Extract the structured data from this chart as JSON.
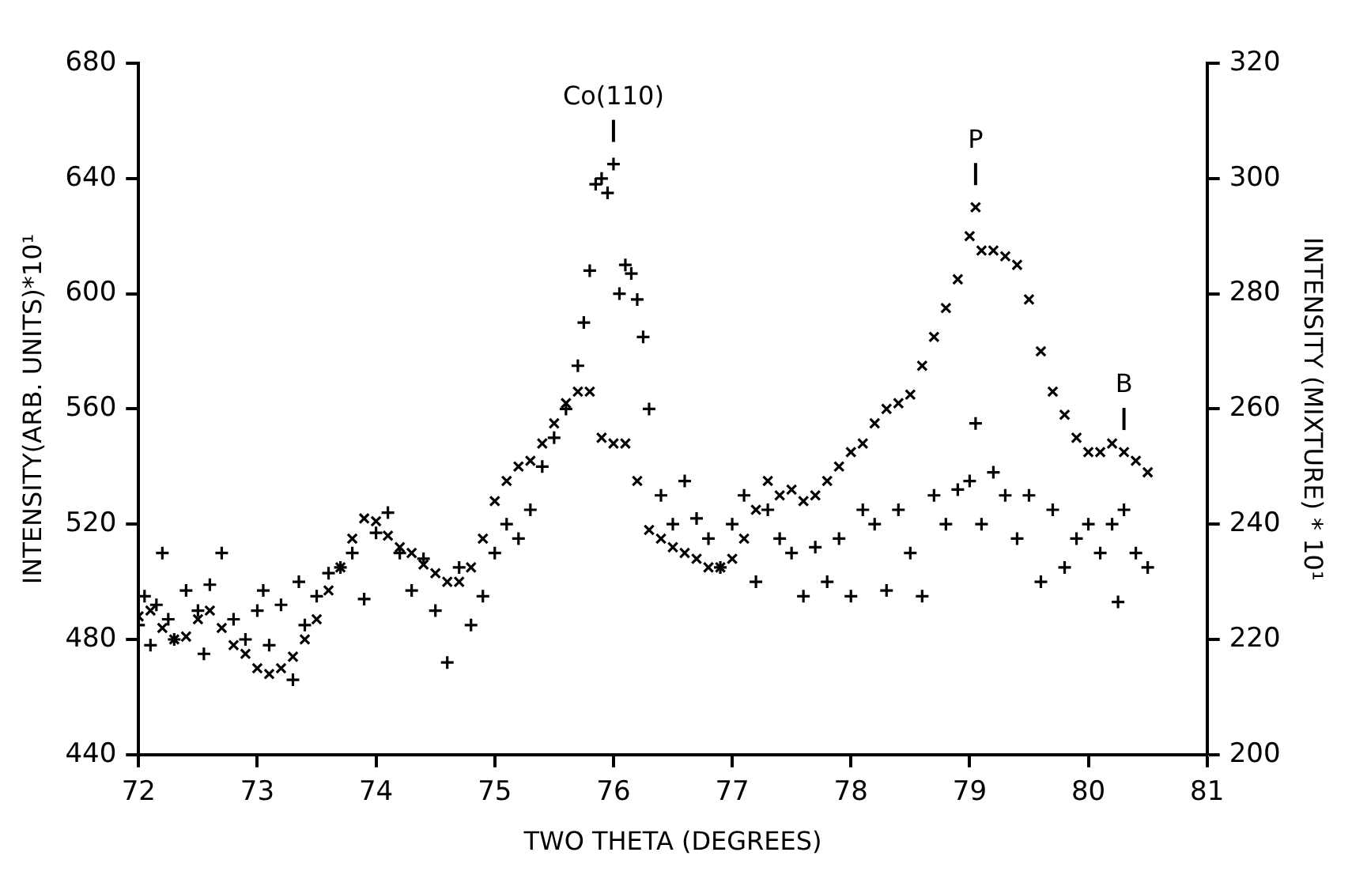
{
  "chart_data": {
    "type": "scatter",
    "xlabel": "TWO THETA (DEGREES)",
    "ylabel": "INTENSITY(ARB. UNITS)*10¹",
    "y2label": "INTENSITY (MIXTURE) * 10¹",
    "xlim": [
      72,
      81
    ],
    "xticks": [
      72,
      73,
      74,
      75,
      76,
      77,
      78,
      79,
      80,
      81
    ],
    "ylim": [
      440,
      680
    ],
    "yticks": [
      440,
      480,
      520,
      560,
      600,
      640,
      680
    ],
    "y2lim": [
      200,
      320
    ],
    "y2ticks": [
      200,
      220,
      240,
      260,
      280,
      300,
      320
    ],
    "grid": false,
    "legend": false,
    "annotations": [
      {
        "text": "Co(110)",
        "x": 76,
        "y": 645
      },
      {
        "text": "P",
        "x": 79.05,
        "y": 630
      },
      {
        "text": "B",
        "x": 80.3,
        "y": 545
      }
    ],
    "series": [
      {
        "color": "#000000",
        "marker": "cross",
        "x": [
          72.0,
          72.05,
          72.1,
          72.15,
          72.2,
          72.25,
          72.3,
          72.4,
          72.5,
          72.55,
          72.6,
          72.7,
          72.8,
          72.9,
          73.0,
          73.05,
          73.1,
          73.2,
          73.3,
          73.35,
          73.4,
          73.5,
          73.6,
          73.7,
          73.8,
          73.9,
          74.0,
          74.1,
          74.2,
          74.3,
          74.4,
          74.5,
          74.6,
          74.7,
          74.8,
          74.9,
          75.0,
          75.1,
          75.2,
          75.3,
          75.4,
          75.5,
          75.6,
          75.7,
          75.75,
          75.8,
          75.85,
          75.9,
          75.95,
          76.0,
          76.05,
          76.1,
          76.15,
          76.2,
          76.25,
          76.3,
          76.4,
          76.5,
          76.6,
          76.7,
          76.8,
          76.9,
          77.0,
          77.1,
          77.2,
          77.3,
          77.4,
          77.5,
          77.6,
          77.7,
          77.8,
          77.9,
          78.0,
          78.1,
          78.2,
          78.3,
          78.4,
          78.5,
          78.6,
          78.7,
          78.8,
          78.9,
          79.0,
          79.05,
          79.1,
          79.2,
          79.3,
          79.4,
          79.5,
          79.6,
          79.7,
          79.8,
          79.9,
          80.0,
          80.1,
          80.2,
          80.25,
          80.3,
          80.4,
          80.5
        ],
        "values": [
          485,
          495,
          478,
          492,
          510,
          487,
          480,
          497,
          490,
          475,
          499,
          510,
          487,
          480,
          490,
          497,
          478,
          492,
          466,
          500,
          485,
          495,
          503,
          505,
          510,
          494,
          517,
          524,
          510,
          497,
          508,
          490,
          472,
          505,
          485,
          495,
          510,
          520,
          515,
          525,
          540,
          550,
          560,
          575,
          590,
          608,
          638,
          640,
          635,
          645,
          600,
          610,
          607,
          598,
          585,
          560,
          530,
          520,
          535,
          522,
          515,
          505,
          520,
          530,
          500,
          525,
          515,
          510,
          495,
          512,
          500,
          515,
          495,
          525,
          520,
          497,
          525,
          510,
          495,
          530,
          520,
          532,
          535,
          555,
          520,
          538,
          530,
          515,
          530,
          500,
          525,
          505,
          515,
          520,
          510,
          520,
          493,
          525,
          510,
          505
        ]
      },
      {
        "color": "#000000",
        "marker": "x",
        "axis": "y2",
        "x": [
          72.0,
          72.1,
          72.2,
          72.3,
          72.4,
          72.5,
          72.6,
          72.7,
          72.8,
          72.9,
          73.0,
          73.1,
          73.2,
          73.3,
          73.4,
          73.5,
          73.6,
          73.7,
          73.8,
          73.9,
          74.0,
          74.1,
          74.2,
          74.3,
          74.4,
          74.5,
          74.6,
          74.7,
          74.8,
          74.9,
          75.0,
          75.1,
          75.2,
          75.3,
          75.4,
          75.5,
          75.6,
          75.7,
          75.8,
          75.9,
          76.0,
          76.1,
          76.2,
          76.3,
          76.4,
          76.5,
          76.6,
          76.7,
          76.8,
          76.9,
          77.0,
          77.1,
          77.2,
          77.3,
          77.4,
          77.5,
          77.6,
          77.7,
          77.8,
          77.9,
          78.0,
          78.1,
          78.2,
          78.3,
          78.4,
          78.5,
          78.6,
          78.7,
          78.8,
          78.9,
          79.0,
          79.05,
          79.1,
          79.2,
          79.3,
          79.4,
          79.5,
          79.6,
          79.7,
          79.8,
          79.9,
          80.0,
          80.1,
          80.2,
          80.3,
          80.4,
          80.5
        ],
        "values": [
          224,
          225,
          222,
          220,
          220.5,
          223.5,
          225,
          222,
          219,
          217.5,
          215,
          214,
          215,
          217,
          220,
          223.5,
          228.5,
          232.5,
          237.5,
          241,
          240.5,
          238,
          236,
          235,
          233,
          231.5,
          230,
          230,
          232.5,
          237.5,
          244,
          247.5,
          250,
          251,
          254,
          257.5,
          261,
          263,
          263,
          255,
          254,
          254,
          247.5,
          239,
          237.5,
          236,
          235,
          234,
          232.5,
          232.5,
          234,
          237.5,
          242.5,
          247.5,
          245,
          246,
          244,
          245,
          247.5,
          250,
          252.5,
          254,
          257.5,
          260,
          261,
          262.5,
          267.5,
          272.5,
          277.5,
          282.5,
          290,
          295,
          287.5,
          287.5,
          286.5,
          285,
          279,
          270,
          263,
          259,
          255,
          252.5,
          252.5,
          254,
          252.5,
          251,
          249
        ]
      }
    ]
  }
}
